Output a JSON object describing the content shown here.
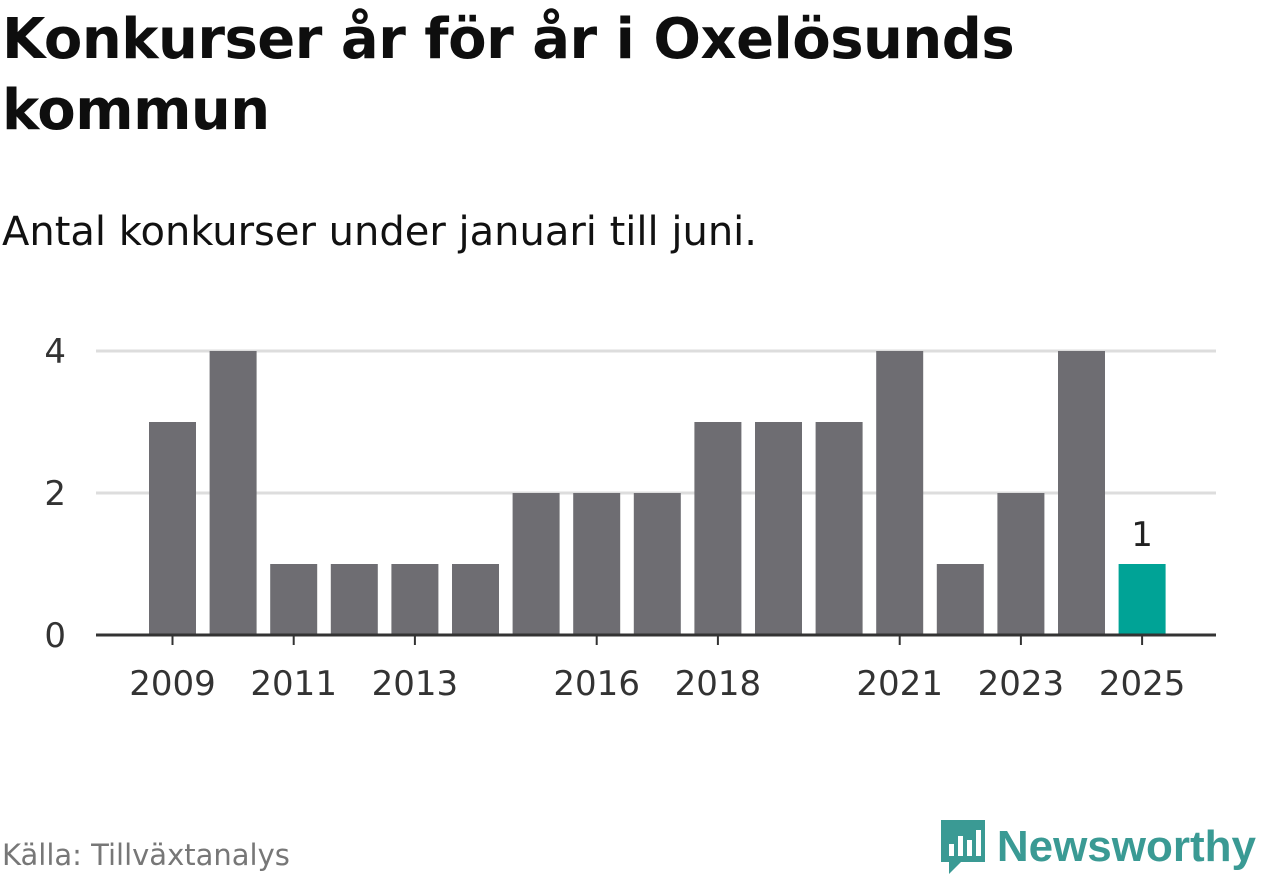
{
  "header": {
    "title": "Konkurser år för år i Oxelösunds kommun",
    "subtitle": "Antal konkurser under januari till juni."
  },
  "footer": {
    "source": "Källa: Tillväxtanalys",
    "brand": "Newsworthy",
    "brand_icon": "bar-chart-speech-bubble-icon"
  },
  "colors": {
    "bar": "#6e6d72",
    "highlight": "#00a396",
    "grid": "#dddddd",
    "axis": "#333333",
    "brand": "#3a9a94"
  },
  "chart_data": {
    "type": "bar",
    "categories": [
      "2009",
      "2010",
      "2011",
      "2012",
      "2013",
      "2014",
      "2015",
      "2016",
      "2017",
      "2018",
      "2019",
      "2020",
      "2021",
      "2022",
      "2023",
      "2024",
      "2025"
    ],
    "values": [
      3,
      4,
      1,
      1,
      1,
      1,
      2,
      2,
      2,
      3,
      3,
      3,
      4,
      1,
      2,
      4,
      1
    ],
    "x_tick_labels": [
      "2009",
      "2011",
      "2013",
      "2016",
      "2018",
      "2021",
      "2023",
      "2025"
    ],
    "y_ticks": [
      0,
      2,
      4
    ],
    "ylim": [
      0,
      4
    ],
    "highlight": {
      "category": "2025",
      "label": "1"
    },
    "grid": true,
    "title": "Konkurser år för år i Oxelösunds kommun",
    "subtitle": "Antal konkurser under januari till juni.",
    "xlabel": "",
    "ylabel": ""
  }
}
